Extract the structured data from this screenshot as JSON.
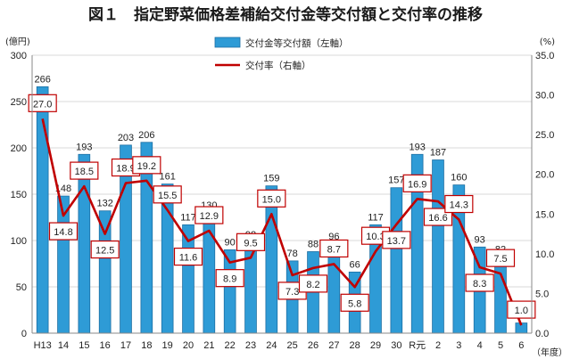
{
  "chart_data": {
    "type": "bar",
    "title": "図１　指定野菜価格差補給交付金等交付額と交付率の推移",
    "left_unit": "(億円)",
    "right_unit": "(%)",
    "x_unit": "（年度）",
    "categories": [
      "H13",
      "14",
      "15",
      "16",
      "17",
      "18",
      "19",
      "20",
      "21",
      "22",
      "23",
      "24",
      "25",
      "26",
      "27",
      "28",
      "29",
      "30",
      "R元",
      "2",
      "3",
      "4",
      "5",
      "6"
    ],
    "ylim_left": [
      0,
      300
    ],
    "yticks_left": [
      "0",
      "50",
      "100",
      "150",
      "200",
      "250",
      "300"
    ],
    "ylim_right": [
      0,
      35
    ],
    "yticks_right": [
      "0.0",
      "5.0",
      "10.0",
      "15.0",
      "20.0",
      "25.0",
      "30.0",
      "35.0"
    ],
    "series": [
      {
        "name": "交付金等交付額（左軸）",
        "type": "bar",
        "axis": "left",
        "values": [
          266,
          148,
          193,
          132,
          203,
          206,
          161,
          117,
          130,
          90,
          98,
          159,
          78,
          88,
          96,
          66,
          117,
          157,
          193,
          187,
          160,
          93,
          82,
          11
        ],
        "labels": [
          "266",
          "148",
          "193",
          "132",
          "203",
          "206",
          "161",
          "117",
          "130",
          "90",
          "98",
          "159",
          "78",
          "88",
          "96",
          "66",
          "117",
          "157",
          "193",
          "187",
          "160",
          "93",
          "82",
          "11"
        ]
      },
      {
        "name": "交付率（右軸）",
        "type": "line",
        "axis": "right",
        "values": [
          27.0,
          14.8,
          18.5,
          12.5,
          18.9,
          19.2,
          15.5,
          11.6,
          12.9,
          8.9,
          9.5,
          15.0,
          7.3,
          8.2,
          8.7,
          5.8,
          10.3,
          13.7,
          16.9,
          16.6,
          14.3,
          8.3,
          7.5,
          1.0
        ],
        "labels": [
          "27.0",
          "14.8",
          "18.5",
          "12.5",
          "18.9",
          "19.2",
          "15.5",
          "11.6",
          "12.9",
          "8.9",
          "9.5",
          "15.0",
          "7.3",
          "8.2",
          "8.7",
          "5.8",
          "10.3",
          "13.7",
          "16.9",
          "16.6",
          "14.3",
          "8.3",
          "7.5",
          "1.0"
        ]
      }
    ],
    "grid": true,
    "legend": "top-center",
    "colors": {
      "bar": "#2e9bd6",
      "bar_edge": "#1d6fa3",
      "line": "#c00000",
      "box_border": "#c00000",
      "grid": "#d9d9d9",
      "axis": "#888888"
    }
  }
}
